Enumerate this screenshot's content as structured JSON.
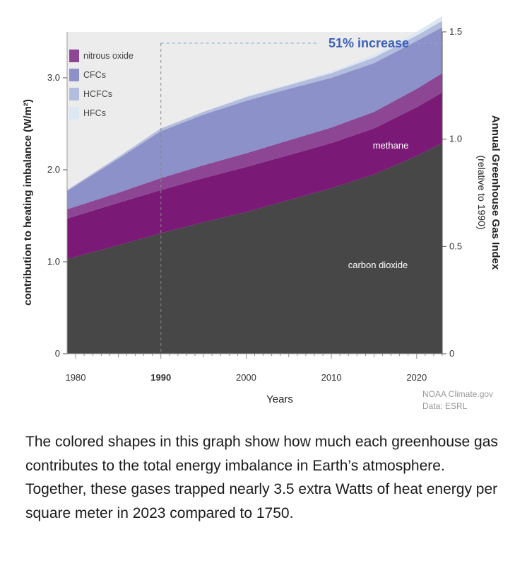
{
  "chart_data": {
    "type": "area",
    "stacked": true,
    "x": [
      1979,
      1985,
      1990,
      1995,
      2000,
      2005,
      2010,
      2015,
      2020,
      2023
    ],
    "series": [
      {
        "name": "carbon dioxide",
        "color": "#474747",
        "values": [
          1.03,
          1.18,
          1.31,
          1.43,
          1.54,
          1.67,
          1.8,
          1.95,
          2.15,
          2.29
        ]
      },
      {
        "name": "methane",
        "color": "#7b1a76",
        "values": [
          0.44,
          0.46,
          0.47,
          0.48,
          0.49,
          0.49,
          0.49,
          0.5,
          0.53,
          0.55
        ]
      },
      {
        "name": "nitrous oxide",
        "color": "#8d4694",
        "values": [
          0.1,
          0.11,
          0.13,
          0.14,
          0.15,
          0.16,
          0.17,
          0.18,
          0.2,
          0.21
        ]
      },
      {
        "name": "CFCs",
        "color": "#8d91c9",
        "values": [
          0.2,
          0.37,
          0.51,
          0.55,
          0.57,
          0.56,
          0.54,
          0.53,
          0.52,
          0.5
        ]
      },
      {
        "name": "HCFCs",
        "color": "#b3bddd",
        "values": [
          0.01,
          0.02,
          0.03,
          0.03,
          0.04,
          0.04,
          0.05,
          0.06,
          0.06,
          0.07
        ]
      },
      {
        "name": "HFCs",
        "color": "#dce7f3",
        "values": [
          0.0,
          0.0,
          0.0,
          0.0,
          0.01,
          0.01,
          0.02,
          0.03,
          0.04,
          0.05
        ]
      }
    ],
    "xlim": [
      1979,
      2023
    ],
    "ylim": [
      0,
      3.5
    ],
    "y2lim": [
      0,
      1.5
    ],
    "xticks": [
      "1980",
      "1990",
      "2000",
      "2010",
      "2020"
    ],
    "highlight_tick": "1990",
    "yticks": [
      "0",
      "1.0",
      "2.0",
      "3.0"
    ],
    "y2ticks": [
      "0",
      "0.5",
      "1.0",
      "1.5"
    ],
    "xlabel": "Years",
    "ylabel": "contribution to heating imbalance (W/m²)",
    "y2label": "Annual Greenhouse Gas Index",
    "y2label_sub": "(relative to 1990)",
    "annotation": "51% increase",
    "legend_position": "top-left",
    "grid": false,
    "credit_line1": "NOAA Climate.gov",
    "credit_line2": "Data: ESRL",
    "colors": {
      "highlight": "#3d5fb8",
      "plot_bg": "#ececec",
      "axis": "#999999"
    }
  },
  "caption": "The colored shapes in this graph show how much each greenhouse gas contributes to the total energy imbalance in Earth’s atmosphere. Together, these gases trapped nearly 3.5 extra Watts of heat energy per square meter in 2023 compared to 1750."
}
